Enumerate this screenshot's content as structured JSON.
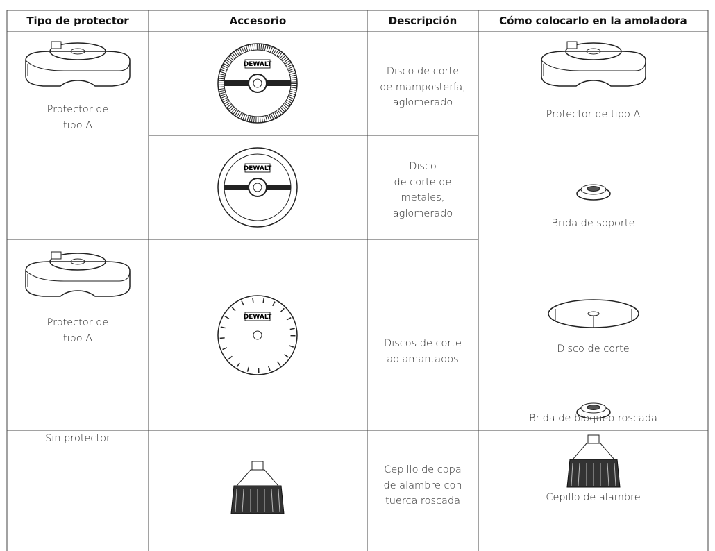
{
  "table": {
    "headers": [
      "Tipo de protector",
      "Accesorio",
      "Descripción",
      "Cómo colocarlo en la amoladora"
    ],
    "brand": "DEWALT",
    "rows": [
      {
        "guard": [
          "Protector de",
          "tipo A"
        ],
        "description": [
          "Disco de corte",
          "de mampostería,",
          "aglomerado"
        ]
      },
      {
        "description": [
          "Disco",
          "de corte de",
          "metales,",
          "aglomerado"
        ]
      },
      {
        "guard": [
          "Protector de",
          "tipo A"
        ],
        "description": [
          "Discos de corte",
          "adiamantados"
        ]
      },
      {
        "guard": [
          "Sin protector"
        ],
        "description": [
          "Cepillo de copa",
          "de alambre con",
          "tuerca roscada"
        ],
        "mounting": "Cepillo de alambre"
      }
    ],
    "mounting": [
      "Protector de tipo A",
      "Brida de soporte",
      "Disco de corte",
      "Brida de bloqueo roscada"
    ]
  }
}
